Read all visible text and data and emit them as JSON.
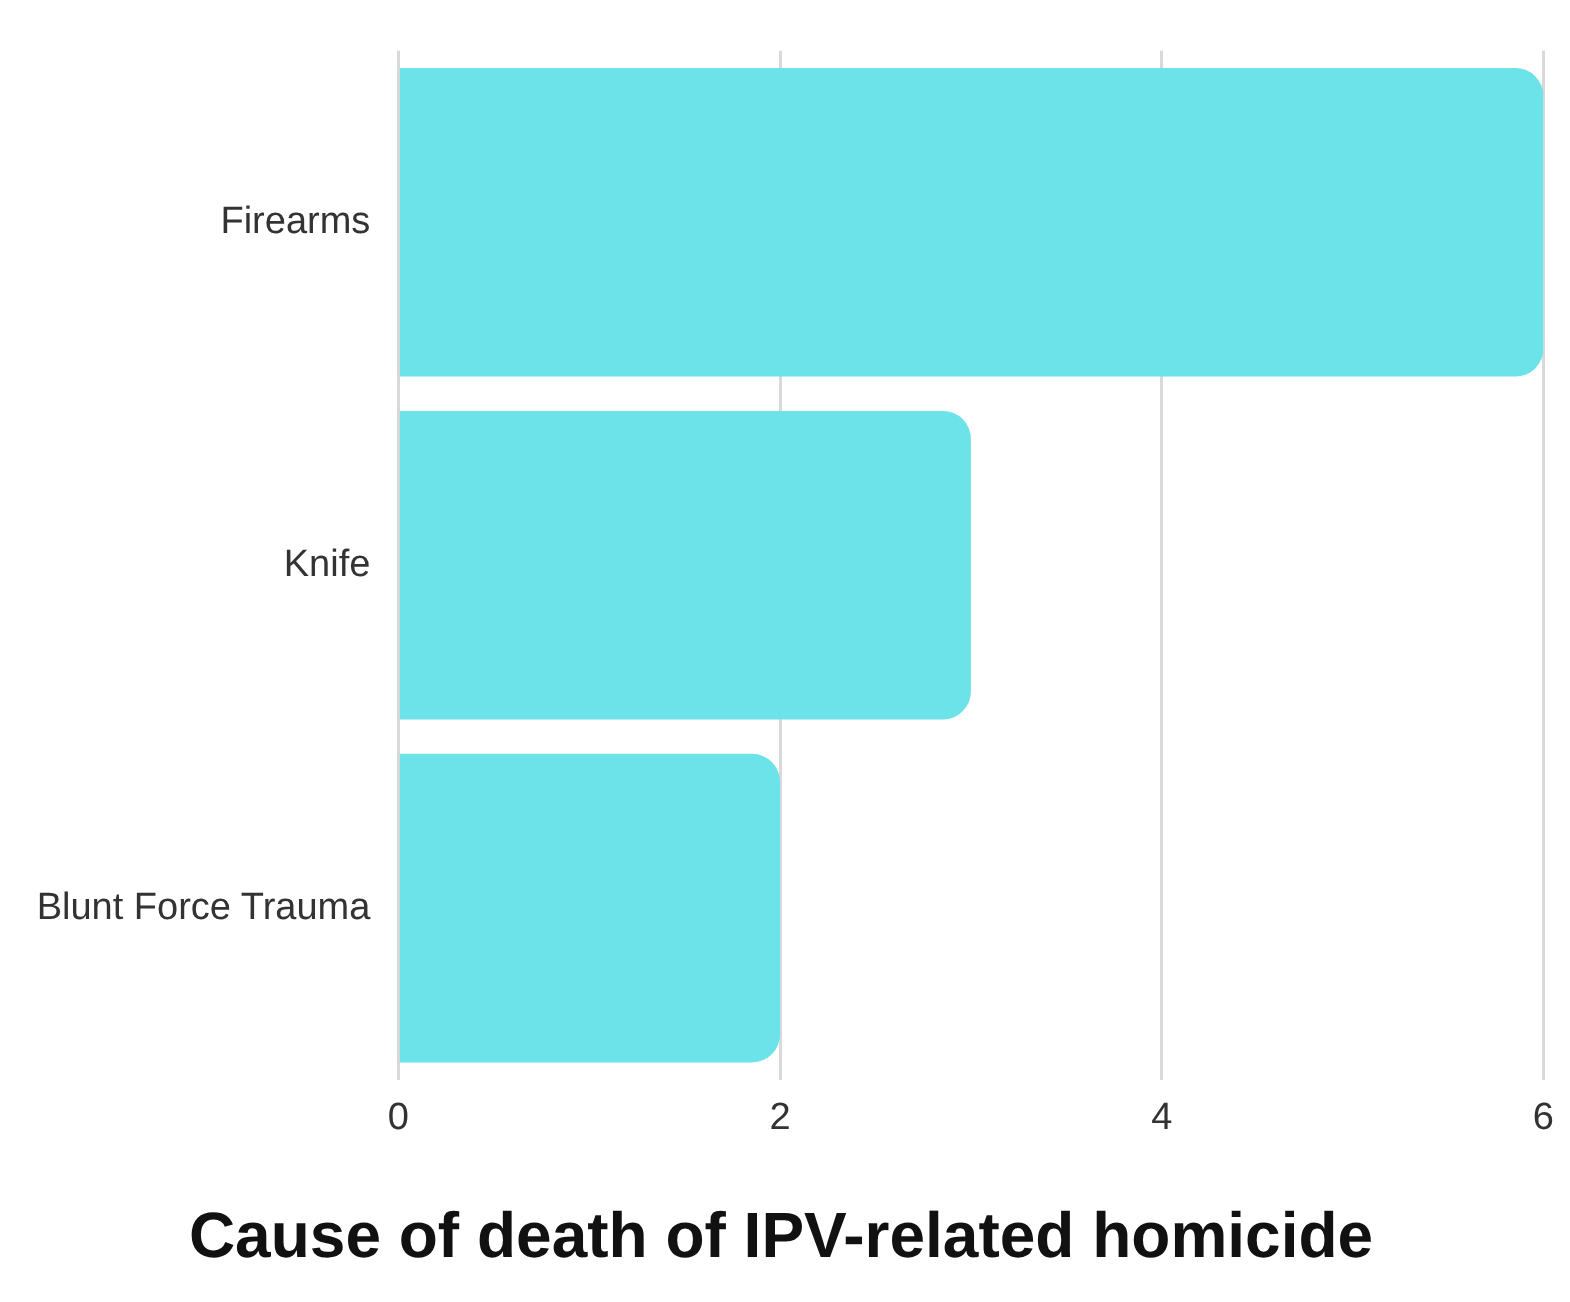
{
  "chart_data": {
    "type": "bar",
    "orientation": "horizontal",
    "title": "Cause of death of IPV-related homicide",
    "categories": [
      "Firearms",
      "Knife",
      "Blunt Force Trauma"
    ],
    "values": [
      6,
      3,
      2
    ],
    "color": "#6ce3e8",
    "xlim": [
      0,
      6
    ],
    "xticks": [
      0,
      2,
      4,
      6
    ],
    "grid": "x"
  }
}
